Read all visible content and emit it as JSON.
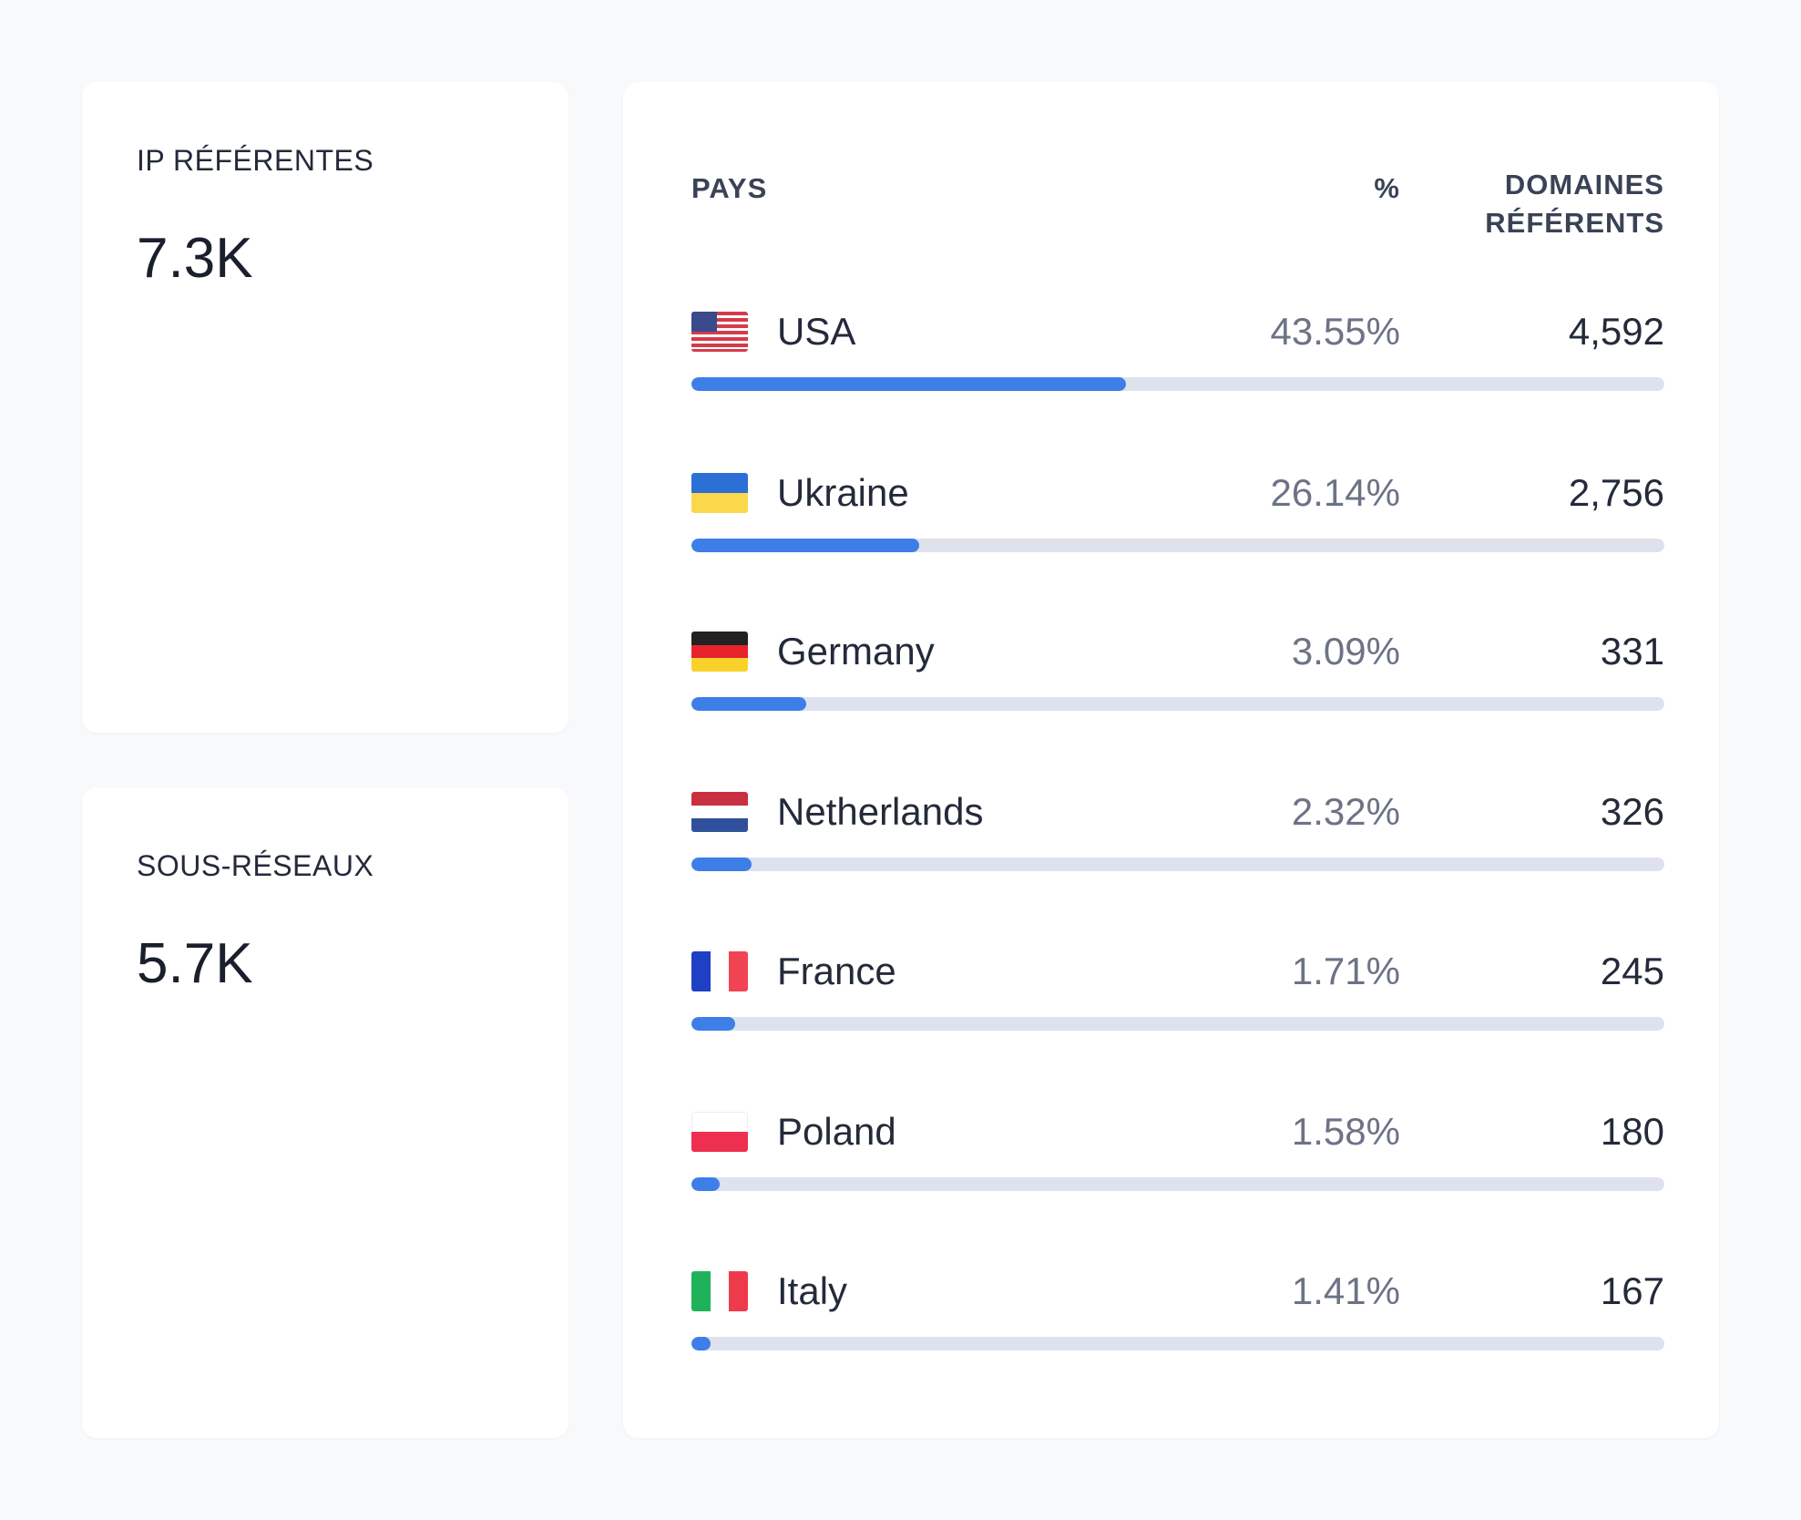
{
  "stats": [
    {
      "label": "IP RÉFÉRENTES",
      "value": "7.3K"
    },
    {
      "label": "SOUS-RÉSEAUX",
      "value": "5.7K"
    }
  ],
  "table": {
    "headers": {
      "country": "PAYS",
      "percent": "%",
      "domains": "DOMAINES RÉFÉRENTS"
    },
    "rows": [
      {
        "country": "USA",
        "flag": "us-flag-icon",
        "percent_label": "43.55%",
        "count": "4,592",
        "bar_fraction": 0.447
      },
      {
        "country": "Ukraine",
        "flag": "ukraine-flag-icon",
        "percent_label": "26.14%",
        "count": "2,756",
        "bar_fraction": 0.234
      },
      {
        "country": "Germany",
        "flag": "germany-flag-icon",
        "percent_label": "3.09%",
        "count": "331",
        "bar_fraction": 0.118
      },
      {
        "country": "Netherlands",
        "flag": "netherlands-flag-icon",
        "percent_label": "2.32%",
        "count": "326",
        "bar_fraction": 0.062
      },
      {
        "country": "France",
        "flag": "france-flag-icon",
        "percent_label": "1.71%",
        "count": "245",
        "bar_fraction": 0.045
      },
      {
        "country": "Poland",
        "flag": "poland-flag-icon",
        "percent_label": "1.58%",
        "count": "180",
        "bar_fraction": 0.029
      },
      {
        "country": "Italy",
        "flag": "italy-flag-icon",
        "percent_label": "1.41%",
        "count": "167",
        "bar_fraction": 0.02
      }
    ]
  },
  "colors": {
    "bar_fill": "#3d7ee8",
    "bar_track": "#dfe1ed",
    "background": "#f8f9fb",
    "card": "#ffffff"
  }
}
